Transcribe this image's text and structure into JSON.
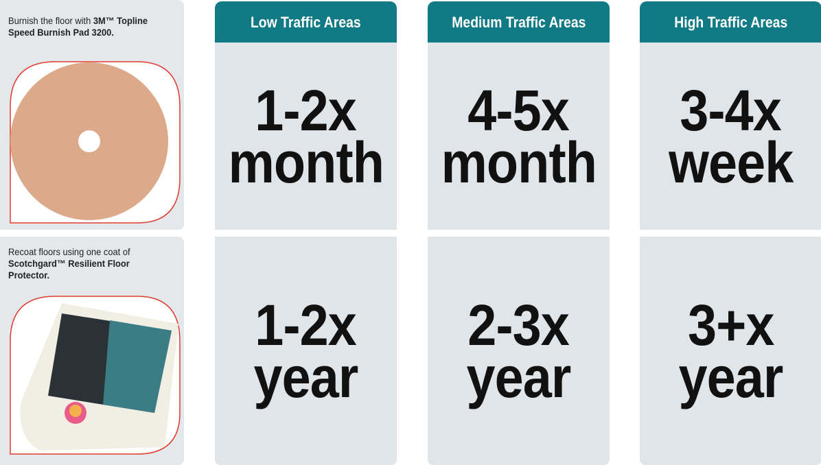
{
  "table": {
    "columns": [
      "Low Traffic Areas",
      "Medium Traffic Areas",
      "High Traffic Areas"
    ],
    "rows": [
      {
        "label_plain": "Burnish the floor with",
        "label_bold": "3M™ Topline Speed Burnish Pad 3200.",
        "cells": [
          [
            "1-2x",
            "month"
          ],
          [
            "4-5x",
            "month"
          ],
          [
            "3-4x",
            "week"
          ]
        ]
      },
      {
        "label_plain": "Recoat floors using one coat of",
        "label_bold": "Scotchgard™ Resilient Floor Protector.",
        "cells": [
          [
            "1-2x",
            "year"
          ],
          [
            "2-3x",
            "year"
          ],
          [
            "3+x",
            "year"
          ]
        ]
      }
    ]
  }
}
